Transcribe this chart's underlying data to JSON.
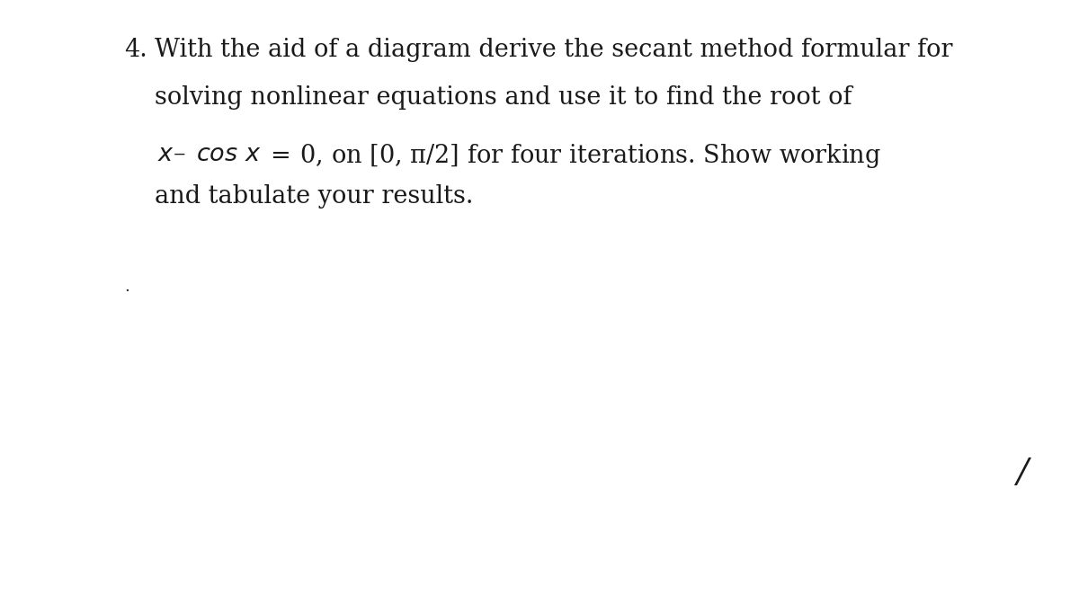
{
  "background_color": "#ffffff",
  "text_color": "#1a1a1a",
  "number": "4.",
  "line1": "With the aid of a diagram derive the secant method formular for",
  "line2": "solving nonlinear equations and use it to find the root of",
  "line4": "and tabulate your results.",
  "dot": ".",
  "slash": "/",
  "font_size_main": 19.5,
  "fig_width": 12.0,
  "fig_height": 6.62
}
